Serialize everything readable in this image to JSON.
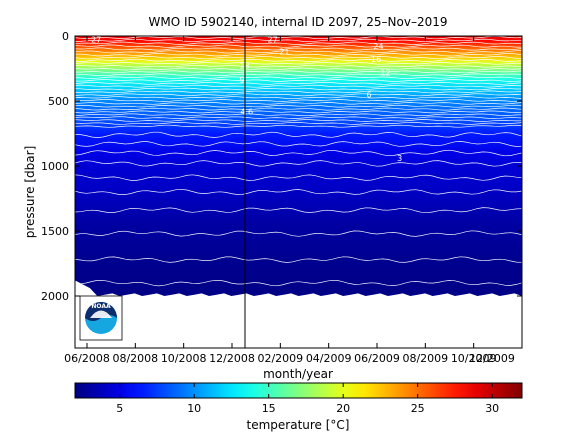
{
  "chart_data": {
    "type": "heatmap",
    "title": "WMO ID 5902140, internal ID 2097, 25–Nov–2019",
    "xlabel": "month/year",
    "ylabel": "pressure [dbar]",
    "x_ticks": [
      "06/2008",
      "08/2008",
      "10/2008",
      "12/2008",
      "02/2009",
      "04/2009",
      "06/2009",
      "08/2009",
      "10/2009",
      "12/2009"
    ],
    "y_ticks": [
      0,
      500,
      1000,
      1500,
      2000
    ],
    "ylim": [
      2400,
      0
    ],
    "colorbar": {
      "label": "temperature [°C]",
      "range": [
        2,
        32
      ],
      "ticks": [
        5,
        10,
        15,
        20,
        25,
        30
      ],
      "colormap": "jet"
    },
    "grid": false,
    "vertical_marker": "between 12/2008 and 02/2009",
    "profile_max_depth_dbar": 2000,
    "temperature_profile": [
      {
        "pressure": 0,
        "temp": 29
      },
      {
        "pressure": 40,
        "temp": 28
      },
      {
        "pressure": 100,
        "temp": 25
      },
      {
        "pressure": 150,
        "temp": 23
      },
      {
        "pressure": 200,
        "temp": 20
      },
      {
        "pressure": 280,
        "temp": 16
      },
      {
        "pressure": 330,
        "temp": 14
      },
      {
        "pressure": 400,
        "temp": 12
      },
      {
        "pressure": 480,
        "temp": 10
      },
      {
        "pressure": 550,
        "temp": 9
      },
      {
        "pressure": 650,
        "temp": 8
      },
      {
        "pressure": 750,
        "temp": 6.5
      },
      {
        "pressure": 900,
        "temp": 5
      },
      {
        "pressure": 1000,
        "temp": 4.5
      },
      {
        "pressure": 1200,
        "temp": 4
      },
      {
        "pressure": 1450,
        "temp": 3
      },
      {
        "pressure": 1700,
        "temp": 2.5
      },
      {
        "pressure": 2000,
        "temp": 2.2
      }
    ],
    "contour_labels": [
      {
        "text": "27",
        "x_month": 0.9,
        "pressure": 25
      },
      {
        "text": "27",
        "x_month": 8.4,
        "pressure": 25
      },
      {
        "text": "21",
        "x_month": 8.9,
        "pressure": 120
      },
      {
        "text": "24",
        "x_month": 12.9,
        "pressure": 75
      },
      {
        "text": "18",
        "x_month": 7.2,
        "pressure": 225
      },
      {
        "text": "16",
        "x_month": 12.8,
        "pressure": 175
      },
      {
        "text": "12",
        "x_month": 13.2,
        "pressure": 280
      },
      {
        "text": "9",
        "x_month": 7.1,
        "pressure": 335
      },
      {
        "text": "6",
        "x_month": 12.5,
        "pressure": 450
      },
      {
        "text": "4.6",
        "x_month": 7.3,
        "pressure": 580
      },
      {
        "text": "3",
        "x_month": 13.8,
        "pressure": 940
      }
    ]
  },
  "logo": {
    "text": "NOAA",
    "colors": {
      "top": "#0d2e6e",
      "bottom": "#16a6e0",
      "ring": "#ffffff"
    }
  }
}
